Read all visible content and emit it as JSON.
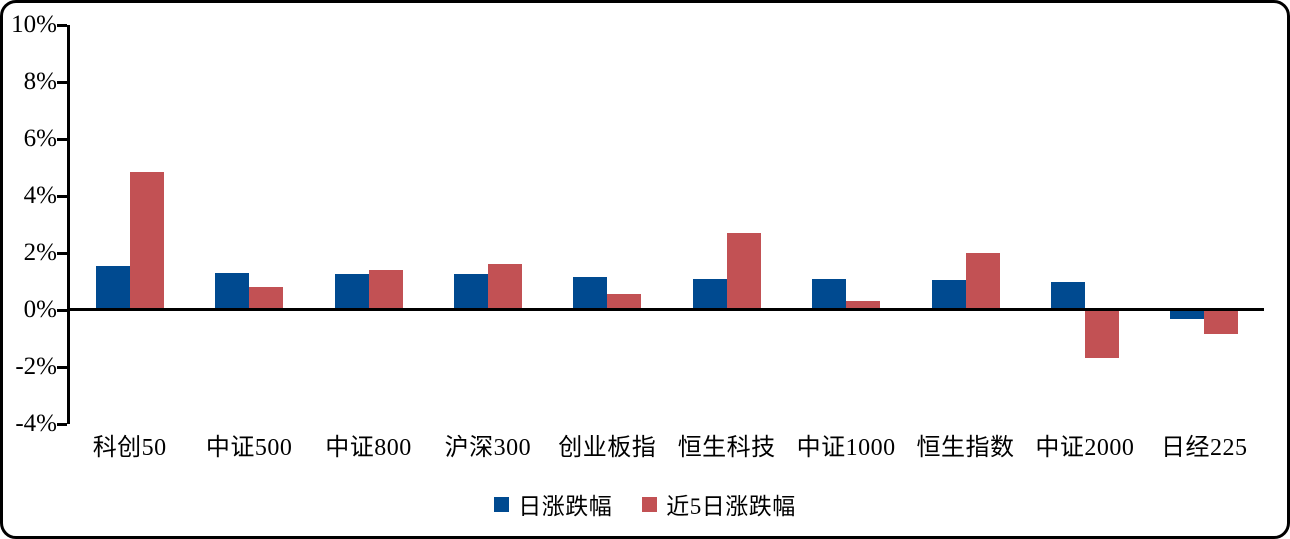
{
  "chart_data": {
    "type": "bar",
    "title": "",
    "xlabel": "",
    "ylabel": "",
    "categories": [
      "科创50",
      "中证500",
      "中证800",
      "沪深300",
      "创业板指",
      "恒生科技",
      "中证1000",
      "恒生指数",
      "中证2000",
      "日经225"
    ],
    "series": [
      {
        "name": "日涨跌幅",
        "color": "#004A90",
        "values": [
          1.55,
          1.3,
          1.25,
          1.25,
          1.15,
          1.1,
          1.1,
          1.05,
          1.0,
          -0.3
        ]
      },
      {
        "name": "近5日涨跌幅",
        "color": "#C25154",
        "values": [
          4.85,
          0.8,
          1.4,
          1.6,
          0.55,
          2.7,
          0.3,
          2.0,
          -1.7,
          -0.85
        ]
      }
    ],
    "unit": "%",
    "ylim": [
      -4,
      10
    ],
    "ytick_values": [
      10,
      8,
      6,
      4,
      2,
      0,
      -2,
      -4
    ],
    "ytick_labels": [
      "10%",
      "8%",
      "6%",
      "4%",
      "2%",
      "0%",
      "-2%",
      "-4%"
    ],
    "grid": false,
    "legend_position": "bottom",
    "axis_color": "#000000",
    "background_color": "#FFFFFF"
  }
}
